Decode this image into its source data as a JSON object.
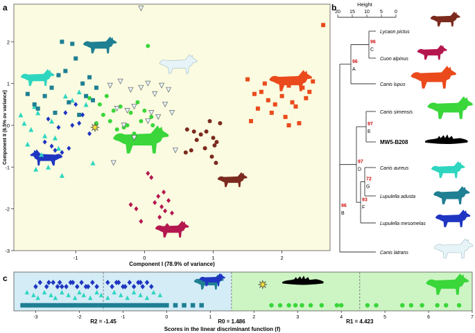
{
  "figure": {
    "panel_a": {
      "label": "a",
      "xlabel": "Component I (78.9% of variance)",
      "ylabel": "Component II (6.5% ov variance)",
      "x_ticks": [
        "-1",
        "0",
        "1",
        "2"
      ],
      "y_ticks": [
        "2",
        "1",
        "0",
        "-1",
        "-2",
        "-3"
      ]
    },
    "panel_b": {
      "label": "b",
      "scale_title": "Height",
      "scale_ticks": [
        "20",
        "15",
        "10",
        "5",
        "0"
      ],
      "taxa": [
        "Lycaon pictus",
        "Cuon alpinus",
        "Canis lupus",
        "Canis simensis",
        "MW5-B208",
        "Canis aureus",
        "Lupulella adusta",
        "Lupulella mesomelas",
        "Canis latrans"
      ],
      "node_letters": [
        "A",
        "B",
        "C",
        "D",
        "E",
        "F",
        "G"
      ],
      "support_values": [
        "96",
        "96",
        "97",
        "97",
        "72",
        "93",
        "96"
      ]
    },
    "panel_c": {
      "label": "c",
      "xlabel": "Scores in the linear discriminant function (f)",
      "x_ticks": [
        "-3",
        "-2",
        "-1",
        "0",
        "1",
        "2",
        "3",
        "4",
        "5",
        "6",
        "7"
      ],
      "thresholds": [
        "R2 = -1.45",
        "R0 = 1.486",
        "R1 = 4.423"
      ]
    },
    "colors": {
      "lycaon": "#7b2a1e",
      "cuon": "#b5174f",
      "lupus": "#ea4a1c",
      "simensis": "#3ad63a",
      "fossil": "#000000",
      "aureus": "#2ed6c0",
      "adusta": "#1f7f93",
      "mesomelas": "#1f35c2",
      "latrans": "#e6f4f8",
      "support": "#cc1111"
    }
  },
  "chart_data": [
    {
      "type": "scatter",
      "title": "",
      "xlabel": "Component I (78.9% of variance)",
      "ylabel": "Component II (6.5% ov variance)",
      "xlim": [
        -1.9,
        2.7
      ],
      "ylim": [
        -3.0,
        2.9
      ],
      "series": [
        {
          "name": "Lycaon pictus",
          "marker": "circle",
          "color": "#7b2a1e",
          "x": [
            0.62,
            0.72,
            0.82,
            0.95,
            1.0,
            1.05,
            1.1,
            0.68,
            0.88,
            0.98,
            1.04,
            0.76,
            0.6,
            0.9,
            1.02
          ],
          "y": [
            -0.1,
            -0.15,
            -0.22,
            0.1,
            -0.3,
            -0.4,
            0.05,
            -0.6,
            -0.55,
            -0.75,
            -0.9,
            -0.35,
            -0.65,
            -0.15,
            -0.48
          ]
        },
        {
          "name": "Cuon alpinus",
          "marker": "diamond",
          "color": "#b5174f",
          "x": [
            0.05,
            0.1,
            -0.2,
            -0.12,
            0.15,
            0.2,
            0.25,
            0.3,
            0.35,
            0.4,
            -0.05,
            0.22,
            0.28,
            0.33
          ],
          "y": [
            -1.15,
            -1.25,
            -1.9,
            -2.0,
            -1.85,
            -1.7,
            -1.95,
            -2.05,
            -1.8,
            -2.1,
            -2.3,
            -2.2,
            -1.6,
            -2.4
          ]
        },
        {
          "name": "Canis lupus",
          "marker": "square",
          "color": "#ea4a1c",
          "x": [
            1.5,
            1.6,
            1.7,
            1.75,
            1.8,
            1.9,
            2.0,
            2.1,
            2.15,
            2.2,
            2.3,
            2.35,
            2.4,
            1.55,
            1.65,
            1.85,
            2.05,
            2.25,
            2.45,
            2.1,
            2.6
          ],
          "y": [
            1.1,
            0.75,
            0.8,
            1.0,
            0.6,
            0.5,
            0.7,
            0.95,
            0.55,
            0.45,
            0.9,
            0.65,
            0.8,
            0.1,
            0.4,
            0.3,
            0.2,
            0.05,
            1.05,
            0.0,
            2.4
          ]
        },
        {
          "name": "Canis simensis",
          "marker": "circle",
          "color": "#3ad63a",
          "x": [
            -0.8,
            -0.65,
            -0.55,
            -0.45,
            -0.35,
            -0.2,
            -0.1,
            0.0,
            0.1,
            -0.7,
            -0.5,
            -0.3,
            -0.15,
            -0.05,
            0.05,
            -0.6,
            -0.4,
            -0.25,
            0.12
          ],
          "y": [
            0.65,
            0.5,
            0.7,
            0.35,
            0.45,
            0.3,
            0.55,
            0.35,
            0.2,
            0.05,
            0.1,
            -0.05,
            -0.2,
            0.1,
            1.9,
            0.25,
            -0.1,
            0.0,
            0.0
          ]
        },
        {
          "name": "Canis aureus",
          "marker": "triangle-up",
          "color": "#2ed6c0",
          "x": [
            -1.8,
            -1.75,
            -1.65,
            -1.55,
            -1.7,
            -1.5,
            -1.6,
            -1.45,
            -1.35,
            -1.25,
            -1.15,
            -1.05,
            -0.95,
            -0.85,
            -1.58,
            -1.4,
            -1.2,
            -0.75,
            -1.3
          ],
          "y": [
            0.25,
            0.05,
            -0.1,
            0.3,
            -0.45,
            -0.7,
            0.45,
            -0.25,
            0.1,
            -0.55,
            0.7,
            0.6,
            0.8,
            0.5,
            -1.05,
            -1.0,
            -1.2,
            -0.9,
            -0.3
          ]
        },
        {
          "name": "Lupulella adusta",
          "marker": "square",
          "color": "#1f7f93",
          "x": [
            -1.7,
            -1.6,
            -1.45,
            -1.35,
            -1.25,
            -1.15,
            -1.0,
            -0.9,
            -0.8,
            -0.7,
            -1.55,
            -1.3,
            -1.1,
            -0.95,
            -0.85,
            -1.2,
            -1.05,
            -0.75
          ],
          "y": [
            0.75,
            0.5,
            0.7,
            0.9,
            1.2,
            1.3,
            1.6,
            1.0,
            1.15,
            0.9,
            0.4,
            0.3,
            0.55,
            0.25,
            0.7,
            2.0,
            1.95,
            0.6
          ]
        },
        {
          "name": "Lupulella mesomelas",
          "marker": "diamond",
          "color": "#1f35c2",
          "x": [
            -1.45,
            -1.35,
            -1.3,
            -1.2,
            -1.1,
            -1.05,
            -0.95,
            -0.9,
            -1.25,
            -1.15,
            -1.0,
            -1.4,
            -0.8,
            -1.5
          ],
          "y": [
            -0.4,
            -0.5,
            -0.6,
            -0.65,
            -0.55,
            0.0,
            0.05,
            0.25,
            -0.05,
            0.3,
            0.5,
            0.15,
            -0.2,
            -0.8
          ]
        },
        {
          "name": "Canis latrans",
          "marker": "triangle-down",
          "color": "#e6f4f8",
          "x": [
            -0.5,
            -0.35,
            -0.2,
            -0.05,
            0.05,
            0.15,
            0.25,
            0.35,
            -0.4,
            -0.25,
            -0.15,
            0.1,
            0.3,
            -0.3,
            0.2,
            0.4,
            -0.45,
            0.45,
            -0.15,
            0.05,
            -0.05
          ],
          "y": [
            0.95,
            1.05,
            0.85,
            0.9,
            1.0,
            0.75,
            0.95,
            0.85,
            0.4,
            0.35,
            0.45,
            0.3,
            0.5,
            0.0,
            0.2,
            0.3,
            -0.9,
            -0.6,
            -0.3,
            0.1,
            2.8
          ]
        },
        {
          "name": "MW5-B208",
          "marker": "star",
          "color": "#f2df3a",
          "x": [
            -0.72
          ],
          "y": [
            -0.05
          ]
        }
      ]
    },
    {
      "type": "strip",
      "xlabel": "Scores in the linear discriminant function (f)",
      "xlim": [
        -3.5,
        7.0
      ],
      "thresholds": [
        {
          "label": "R2 = -1.45",
          "value": -1.45
        },
        {
          "label": "R0 = 1.486",
          "value": 1.486
        },
        {
          "label": "R1 = 4.423",
          "value": 4.423
        }
      ],
      "series": [
        {
          "name": "Lupulella mesomelas",
          "marker": "diamond",
          "color": "#1f35c2",
          "row": 1,
          "values": [
            -3.0,
            -2.9,
            -2.75,
            -2.6,
            -2.5,
            -2.45,
            -2.3,
            -2.2,
            -2.05,
            -1.95,
            -1.85,
            -1.7,
            -1.6,
            -1.35,
            -1.25,
            -1.1,
            -1.0,
            -0.85,
            -0.75,
            -0.65,
            -0.55,
            -0.45,
            -0.35,
            -0.6,
            -0.95,
            -1.15,
            -1.8,
            -2.15,
            -2.4,
            -2.7
          ]
        },
        {
          "name": "Canis aureus",
          "marker": "triangle-up",
          "color": "#2ed6c0",
          "row": 2,
          "values": [
            -3.2,
            -3.05,
            -2.95,
            -2.8,
            -2.65,
            -2.55,
            -2.4,
            -2.25,
            -2.1,
            -2.0,
            -1.9,
            -1.75,
            -1.6,
            -1.5,
            -1.35,
            -1.2,
            -1.05,
            -0.9,
            -0.75,
            -0.6,
            -0.45,
            -0.3,
            -0.15
          ]
        },
        {
          "name": "Lupulella adusta",
          "marker": "square",
          "color": "#1f7f93",
          "row": 3,
          "values": [
            -3.3,
            -3.2,
            -3.1,
            -3.0,
            -2.9,
            -2.8,
            -2.7,
            -2.6,
            -2.5,
            -2.4,
            -2.3,
            -2.2,
            -2.1,
            -2.0,
            -1.9,
            -1.8,
            -1.7,
            -1.6,
            -1.5,
            -1.4,
            -1.3,
            -1.2,
            -1.1,
            -1.0,
            -0.9,
            -0.8,
            -0.7,
            -0.6,
            -0.5,
            -0.4,
            -0.3,
            -0.2,
            -0.1,
            0.0,
            0.2,
            0.4,
            0.6,
            0.8
          ]
        },
        {
          "name": "Canis simensis",
          "marker": "circle",
          "color": "#3ad63a",
          "row": 3,
          "values": [
            2.4,
            2.6,
            2.8,
            2.95,
            3.1,
            3.3,
            3.55,
            3.9,
            4.0,
            4.6,
            4.8,
            5.4,
            5.6,
            5.85,
            6.2,
            6.4,
            6.7
          ]
        },
        {
          "name": "MW5-B208",
          "marker": "star",
          "color": "#f2df3a",
          "row": 1,
          "values": [
            2.2
          ]
        }
      ]
    }
  ]
}
